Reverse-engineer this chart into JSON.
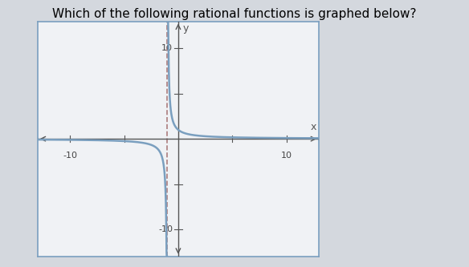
{
  "title": "Which of the following rational functions is graphed below?",
  "title_fontsize": 11,
  "xlim": [
    -13,
    13
  ],
  "ylim": [
    -13,
    13
  ],
  "vertical_asymptote": -1,
  "curve_color": "#7a9fbf",
  "asymptote_color": "#9b6060",
  "bg_color": "#f0f2f5",
  "axis_color": "#555555",
  "tick_label_color": "#444444",
  "box_edge_color": "#7a9fbf",
  "fig_bg_color": "#d4d8de"
}
